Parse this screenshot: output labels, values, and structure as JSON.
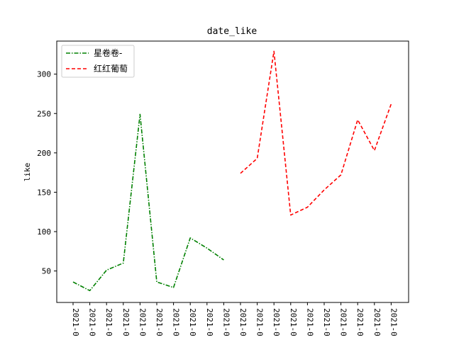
{
  "chart_data": {
    "type": "line",
    "title": "date_like",
    "xlabel": "",
    "ylabel": "like",
    "ylim": [
      10,
      342
    ],
    "yticks": [
      50,
      100,
      150,
      200,
      250,
      300
    ],
    "x_tick_labels": [
      "2021-0",
      "2021-0",
      "2021-0",
      "2021-0",
      "2021-0",
      "2021-0",
      "2021-0",
      "2021-0",
      "2021-0",
      "2021-0",
      "2021-0",
      "2021-0",
      "2021-0",
      "2021-0",
      "2021-0",
      "2021-0",
      "2021-0",
      "2021-0",
      "2021-0",
      "2021-0"
    ],
    "legend_position": "upper left",
    "grid": false,
    "series": [
      {
        "name": "星卷卷-",
        "color": "#008000",
        "style": "dashdot",
        "start_index": 0,
        "values": [
          36,
          25,
          51,
          60,
          249,
          36,
          29,
          92,
          79,
          64
        ]
      },
      {
        "name": "红红葡萄",
        "color": "#ff0000",
        "style": "dashed",
        "start_index": 10,
        "values": [
          174,
          193,
          329,
          121,
          131,
          153,
          172,
          242,
          203,
          262
        ]
      }
    ]
  }
}
